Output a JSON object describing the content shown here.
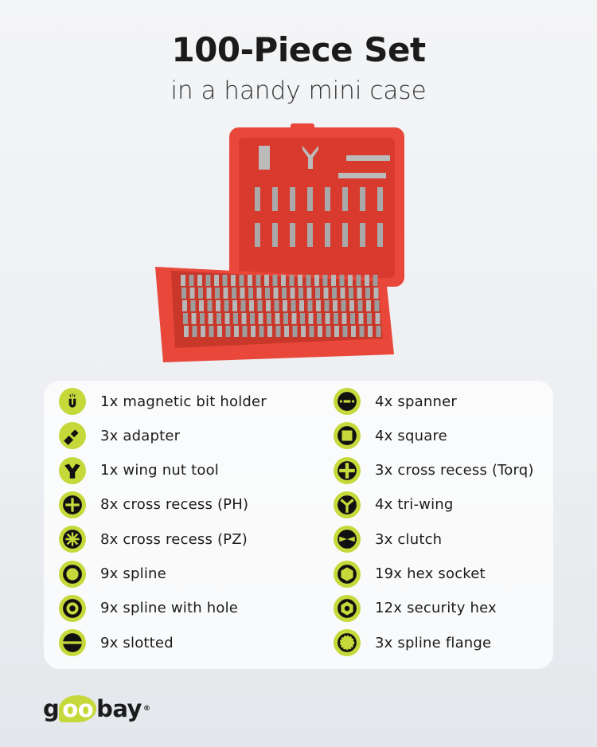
{
  "header": {
    "title": "100-Piece Set",
    "subtitle": "in a handy mini case"
  },
  "accent_color": "#c5d93a",
  "case_color": "#e8473a",
  "left_items": [
    {
      "icon": "magnet-icon",
      "label": "1x magnetic bit holder"
    },
    {
      "icon": "adapter-icon",
      "label": "3x adapter"
    },
    {
      "icon": "wing-nut-icon",
      "label": "1x wing nut tool"
    },
    {
      "icon": "cross-ph-icon",
      "label": "8x cross recess (PH)"
    },
    {
      "icon": "cross-pz-icon",
      "label": "8x cross recess (PZ)"
    },
    {
      "icon": "spline-icon",
      "label": "9x spline"
    },
    {
      "icon": "spline-hole-icon",
      "label": "9x spline with hole"
    },
    {
      "icon": "slotted-icon",
      "label": "9x slotted"
    }
  ],
  "right_items": [
    {
      "icon": "spanner-icon",
      "label": "4x spanner"
    },
    {
      "icon": "square-icon",
      "label": "4x square"
    },
    {
      "icon": "torq-icon",
      "label": "3x cross recess (Torq)"
    },
    {
      "icon": "tri-wing-icon",
      "label": "4x tri-wing"
    },
    {
      "icon": "clutch-icon",
      "label": "3x clutch"
    },
    {
      "icon": "hex-socket-icon",
      "label": "19x hex socket"
    },
    {
      "icon": "security-hex-icon",
      "label": "12x security hex"
    },
    {
      "icon": "spline-flange-icon",
      "label": "3x spline flange"
    }
  ],
  "brand": {
    "name": "goobay"
  }
}
